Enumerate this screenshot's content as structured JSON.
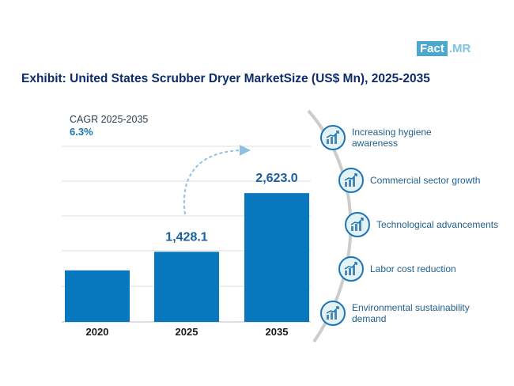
{
  "brand": {
    "part1": "Fact",
    "part2": ".MR"
  },
  "title": "Exhibit: United States Scrubber Dryer MarketSize (US$ Mn), 2025-2035",
  "cagr": {
    "label": "CAGR 2025-2035",
    "value": "6.3%"
  },
  "drivers": [
    "Increasing hygiene awareness",
    "Commercial sector growth",
    "Technological advancements",
    "Labor cost reduction",
    "Environmental sustainability demand"
  ],
  "colors": {
    "bar": "#0878be",
    "title": "#0d2c6c",
    "accent": "#1a74b8",
    "arrow": "#8fc1e3"
  },
  "chart_data": {
    "type": "bar",
    "title": "United States Scrubber Dryer MarketSize (US$ Mn), 2025-2035",
    "categories": [
      "2020",
      "2025",
      "2035"
    ],
    "values": [
      1050,
      1428.1,
      2623.0
    ],
    "data_labels": [
      "",
      "1,428.1",
      "2,623.0"
    ],
    "ylim": [
      0,
      4300
    ],
    "xlabel": "",
    "ylabel": "US$ Mn",
    "grid": true
  }
}
